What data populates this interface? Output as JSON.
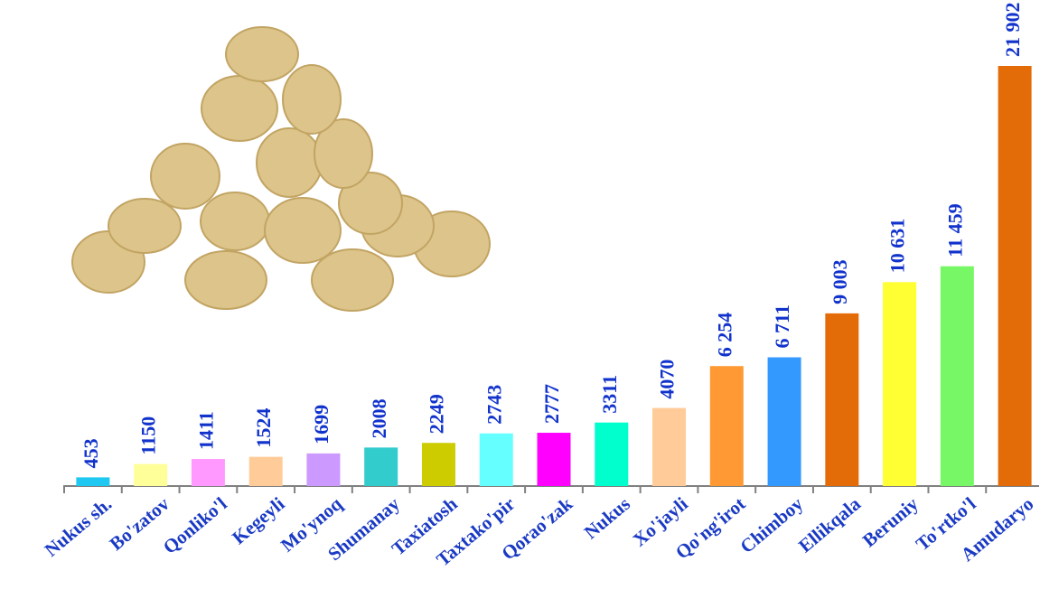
{
  "chart_data": {
    "type": "bar",
    "categories": [
      "Nukus sh.",
      "Bo'zatov",
      "Qonliko'l",
      "Kegeyli",
      "Mo'ynoq",
      "Shumanay",
      "Taxiatosh",
      "Taxtako'pir",
      "Qorao'zak",
      "Nukus",
      "Xo'jayli",
      "Qo'ng'irot",
      "Chimboy",
      "Ellikqala",
      "Beruniy",
      "To'rtko'l",
      "Amudaryo"
    ],
    "values": [
      453,
      1150,
      1411,
      1524,
      1699,
      2008,
      2249,
      2743,
      2777,
      3311,
      4070,
      6254,
      6711,
      9003,
      10631,
      11459,
      21902
    ],
    "value_labels": [
      "453",
      "1150",
      "1411",
      "1524",
      "1699",
      "2008",
      "2249",
      "2743",
      "2777",
      "3311",
      "4070",
      "6 254",
      "6 711",
      "9 003",
      "10 631",
      "11 459",
      "21 902"
    ],
    "colors": [
      "#1ec8f0",
      "#ffff99",
      "#ff99ff",
      "#ffcc99",
      "#cc99ff",
      "#33cccc",
      "#cccc00",
      "#66ffff",
      "#ff00ff",
      "#00ffcc",
      "#ffcc99",
      "#ff9933",
      "#3399ff",
      "#e36c09",
      "#ffff33",
      "#77f766",
      "#e36c09"
    ]
  }
}
